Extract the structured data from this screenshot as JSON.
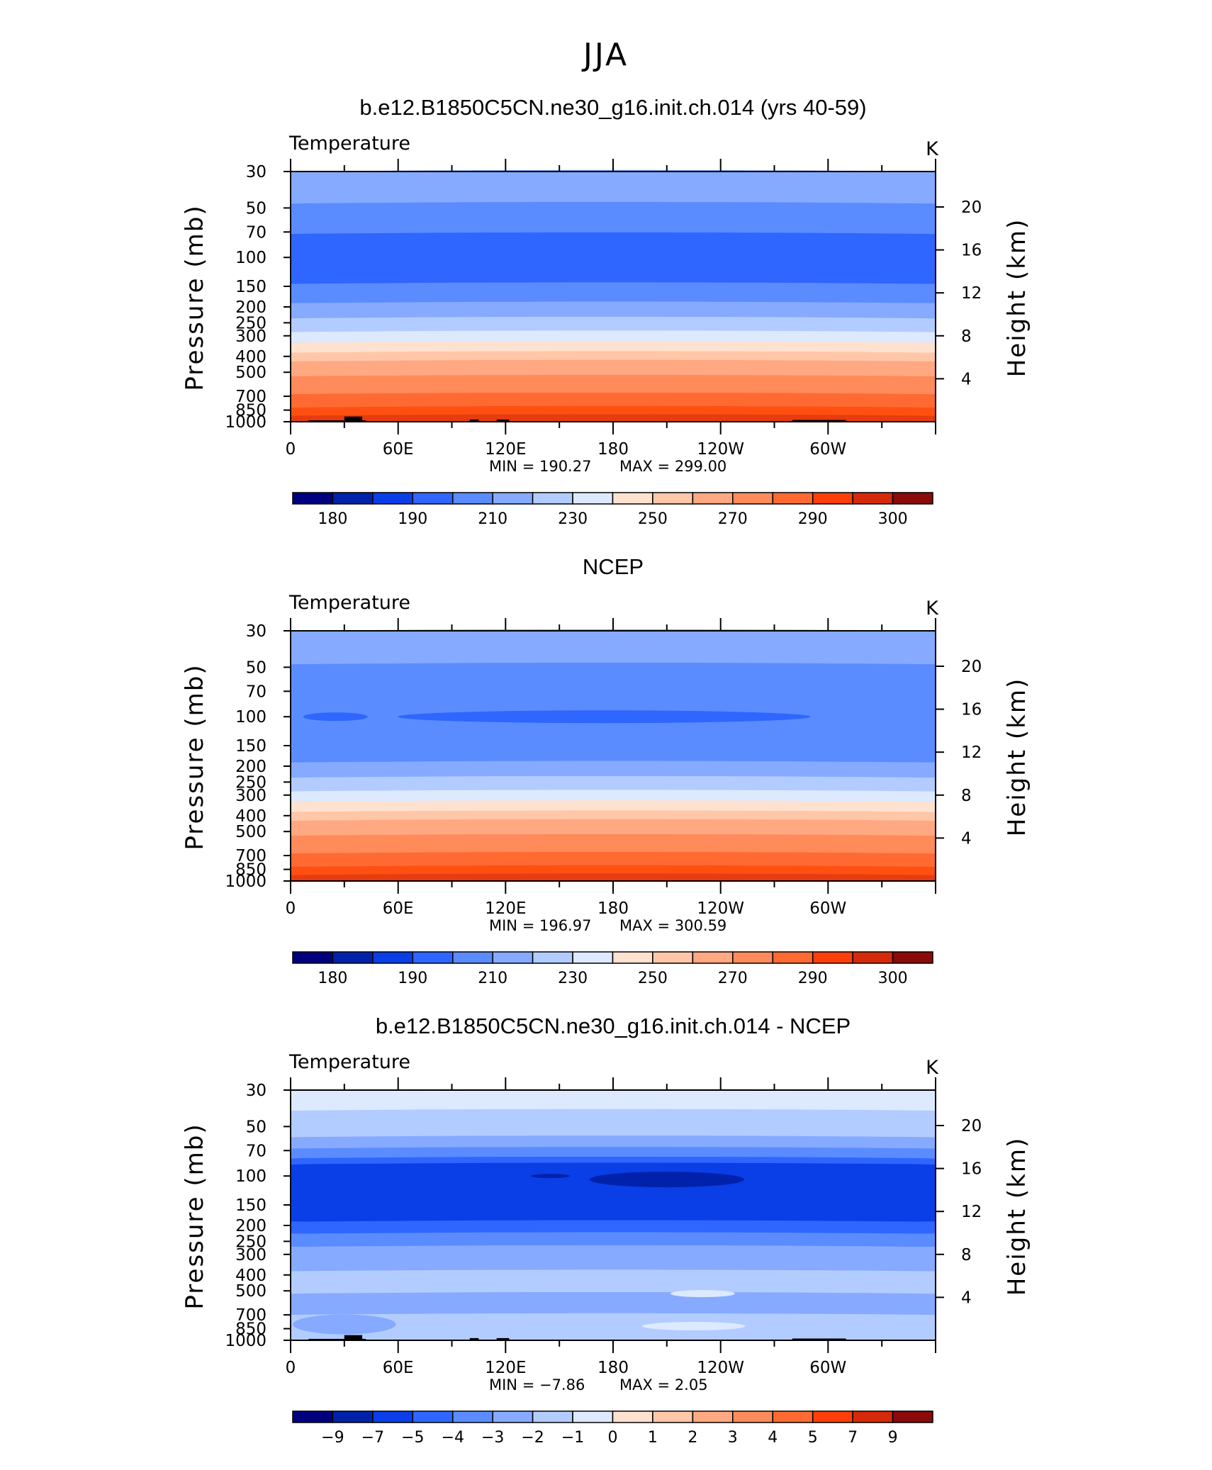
{
  "page_title": "JJA",
  "chart_data": [
    {
      "type": "heatmap",
      "title": "b.e12.B1850C5CN.ne30_g16.init.ch.014 (yrs 40-59)",
      "variable": "Temperature",
      "units": "K",
      "ylabel": "Pressure  (mb)",
      "ylabel_right": "Height  (km)",
      "yticks": [
        "30",
        "50",
        "70",
        "100",
        "150",
        "200",
        "250",
        "300",
        "400",
        "500",
        "700",
        "850",
        "1000"
      ],
      "ytick_values": [
        30,
        50,
        70,
        100,
        150,
        200,
        250,
        300,
        400,
        500,
        700,
        850,
        1000
      ],
      "yticks_right": [
        "20",
        "16",
        "12",
        "8",
        "4"
      ],
      "ytick_right_values": [
        20,
        16,
        12,
        8,
        4
      ],
      "xticks": [
        "0",
        "60E",
        "120E",
        "180",
        "120W",
        "60W"
      ],
      "xtick_values": [
        0,
        60,
        120,
        180,
        240,
        300
      ],
      "xlim": [
        0,
        360
      ],
      "ylim": [
        1000,
        30
      ],
      "min_label": "MIN =  190.27",
      "max_label": "MAX =  299.00",
      "colorbar_labels": [
        "180",
        "190",
        "210",
        "230",
        "250",
        "270",
        "290",
        "300"
      ],
      "band_colors": [
        "#85aaff",
        "#5a8cff",
        "#2e66ff",
        "#5a8cff",
        "#85aaff",
        "#b3ccff",
        "#dce9ff",
        "#ffe1cf",
        "#ffc7a8",
        "#ffa881",
        "#ff8a5a",
        "#ff6a32",
        "#ff5012",
        "#e63c10"
      ],
      "band_bounds": [
        30,
        47,
        72,
        145,
        190,
        235,
        285,
        330,
        380,
        430,
        530,
        680,
        820,
        920,
        1000
      ],
      "topography": true
    },
    {
      "type": "heatmap",
      "title": "NCEP",
      "variable": "Temperature",
      "units": "K",
      "ylabel": "Pressure  (mb)",
      "ylabel_right": "Height  (km)",
      "yticks": [
        "30",
        "50",
        "70",
        "100",
        "150",
        "200",
        "250",
        "300",
        "400",
        "500",
        "700",
        "850",
        "1000"
      ],
      "ytick_values": [
        30,
        50,
        70,
        100,
        150,
        200,
        250,
        300,
        400,
        500,
        700,
        850,
        1000
      ],
      "yticks_right": [
        "20",
        "16",
        "12",
        "8",
        "4"
      ],
      "ytick_right_values": [
        20,
        16,
        12,
        8,
        4
      ],
      "xticks": [
        "0",
        "60E",
        "120E",
        "180",
        "120W",
        "60W"
      ],
      "xtick_values": [
        0,
        60,
        120,
        180,
        240,
        300
      ],
      "xlim": [
        0,
        360
      ],
      "ylim": [
        1000,
        30
      ],
      "min_label": "MIN =  196.97",
      "max_label": "MAX =  300.59",
      "colorbar_labels": [
        "180",
        "190",
        "210",
        "230",
        "250",
        "270",
        "290",
        "300"
      ],
      "band_colors": [
        "#85aaff",
        "#5a8cff",
        "#5a8cff",
        "#5a8cff",
        "#85aaff",
        "#b3ccff",
        "#dce9ff",
        "#ffe1cf",
        "#ffc7a8",
        "#ffa881",
        "#ff8a5a",
        "#ff6a32",
        "#ff5012",
        "#e63c10"
      ],
      "band_bounds": [
        30,
        48,
        72,
        145,
        190,
        235,
        285,
        330,
        380,
        430,
        530,
        680,
        820,
        920,
        1000
      ],
      "topography": false
    },
    {
      "type": "heatmap",
      "title": "b.e12.B1850C5CN.ne30_g16.init.ch.014 - NCEP",
      "variable": "Temperature",
      "units": "K",
      "ylabel": "Pressure  (mb)",
      "ylabel_right": "Height  (km)",
      "yticks": [
        "30",
        "50",
        "70",
        "100",
        "150",
        "200",
        "250",
        "300",
        "400",
        "500",
        "700",
        "850",
        "1000"
      ],
      "ytick_values": [
        30,
        50,
        70,
        100,
        150,
        200,
        250,
        300,
        400,
        500,
        700,
        850,
        1000
      ],
      "yticks_right": [
        "20",
        "16",
        "12",
        "8",
        "4"
      ],
      "ytick_right_values": [
        20,
        16,
        12,
        8,
        4
      ],
      "xticks": [
        "0",
        "60E",
        "120E",
        "180",
        "120W",
        "60W"
      ],
      "xtick_values": [
        0,
        60,
        120,
        180,
        240,
        300
      ],
      "xlim": [
        0,
        360
      ],
      "ylim": [
        1000,
        30
      ],
      "min_label": "MIN =   −7.86",
      "max_label": "MAX =     2.05",
      "colorbar_labels": [
        "−9",
        "−7",
        "−5",
        "−4",
        "−3",
        "−2",
        "−1",
        "0",
        "1",
        "2",
        "3",
        "4",
        "5",
        "7",
        "9"
      ],
      "band_colors": [
        "#dce9ff",
        "#b3ccff",
        "#85aaff",
        "#5a8cff",
        "#2e66ff",
        "#0a3ee6",
        "#2e66ff",
        "#5a8cff",
        "#85aaff",
        "#b3ccff",
        "#85aaff",
        "#b3ccff"
      ],
      "band_bounds": [
        30,
        40,
        58,
        68,
        78,
        85,
        190,
        225,
        270,
        380,
        520,
        700,
        1000
      ],
      "topography": true
    }
  ],
  "colorbar_colors": [
    "#00007f",
    "#0022aa",
    "#0a3ee6",
    "#2e66ff",
    "#5a8cff",
    "#85aaff",
    "#b3ccff",
    "#dce9ff",
    "#ffe1cf",
    "#ffc7a8",
    "#ffa881",
    "#ff8a5a",
    "#ff6a32",
    "#ff3f0a",
    "#d52a0a",
    "#8b0a0a"
  ]
}
